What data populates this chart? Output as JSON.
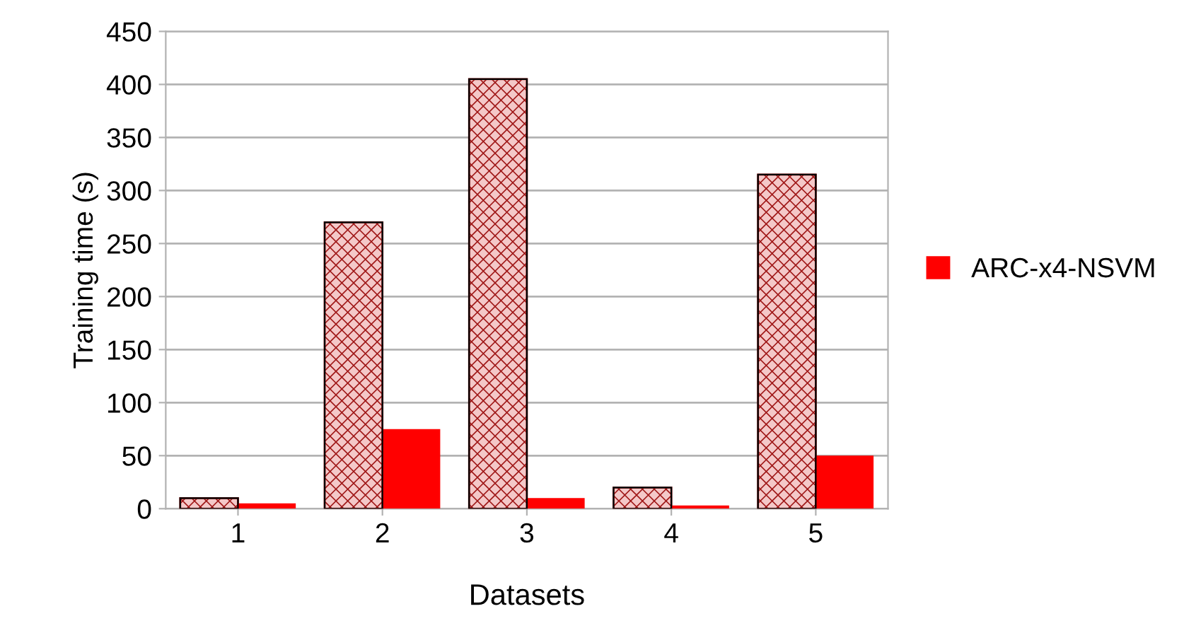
{
  "chart_data": {
    "type": "bar",
    "xlabel": "Datasets",
    "ylabel": "Training time (s)",
    "categories": [
      "1",
      "2",
      "3",
      "4",
      "5"
    ],
    "series": [
      {
        "color": "#a01818",
        "values": [
          10,
          270,
          405,
          20,
          315
        ]
      },
      {
        "name": "ARC-x4-NSVM",
        "color": "#ff0000",
        "values": [
          5,
          75,
          10,
          3,
          50
        ]
      }
    ],
    "ylim": [
      0,
      450
    ],
    "yticks": [
      0,
      50,
      100,
      150,
      200,
      250,
      300,
      350,
      400,
      450
    ],
    "grid": "y",
    "legend": "right"
  }
}
